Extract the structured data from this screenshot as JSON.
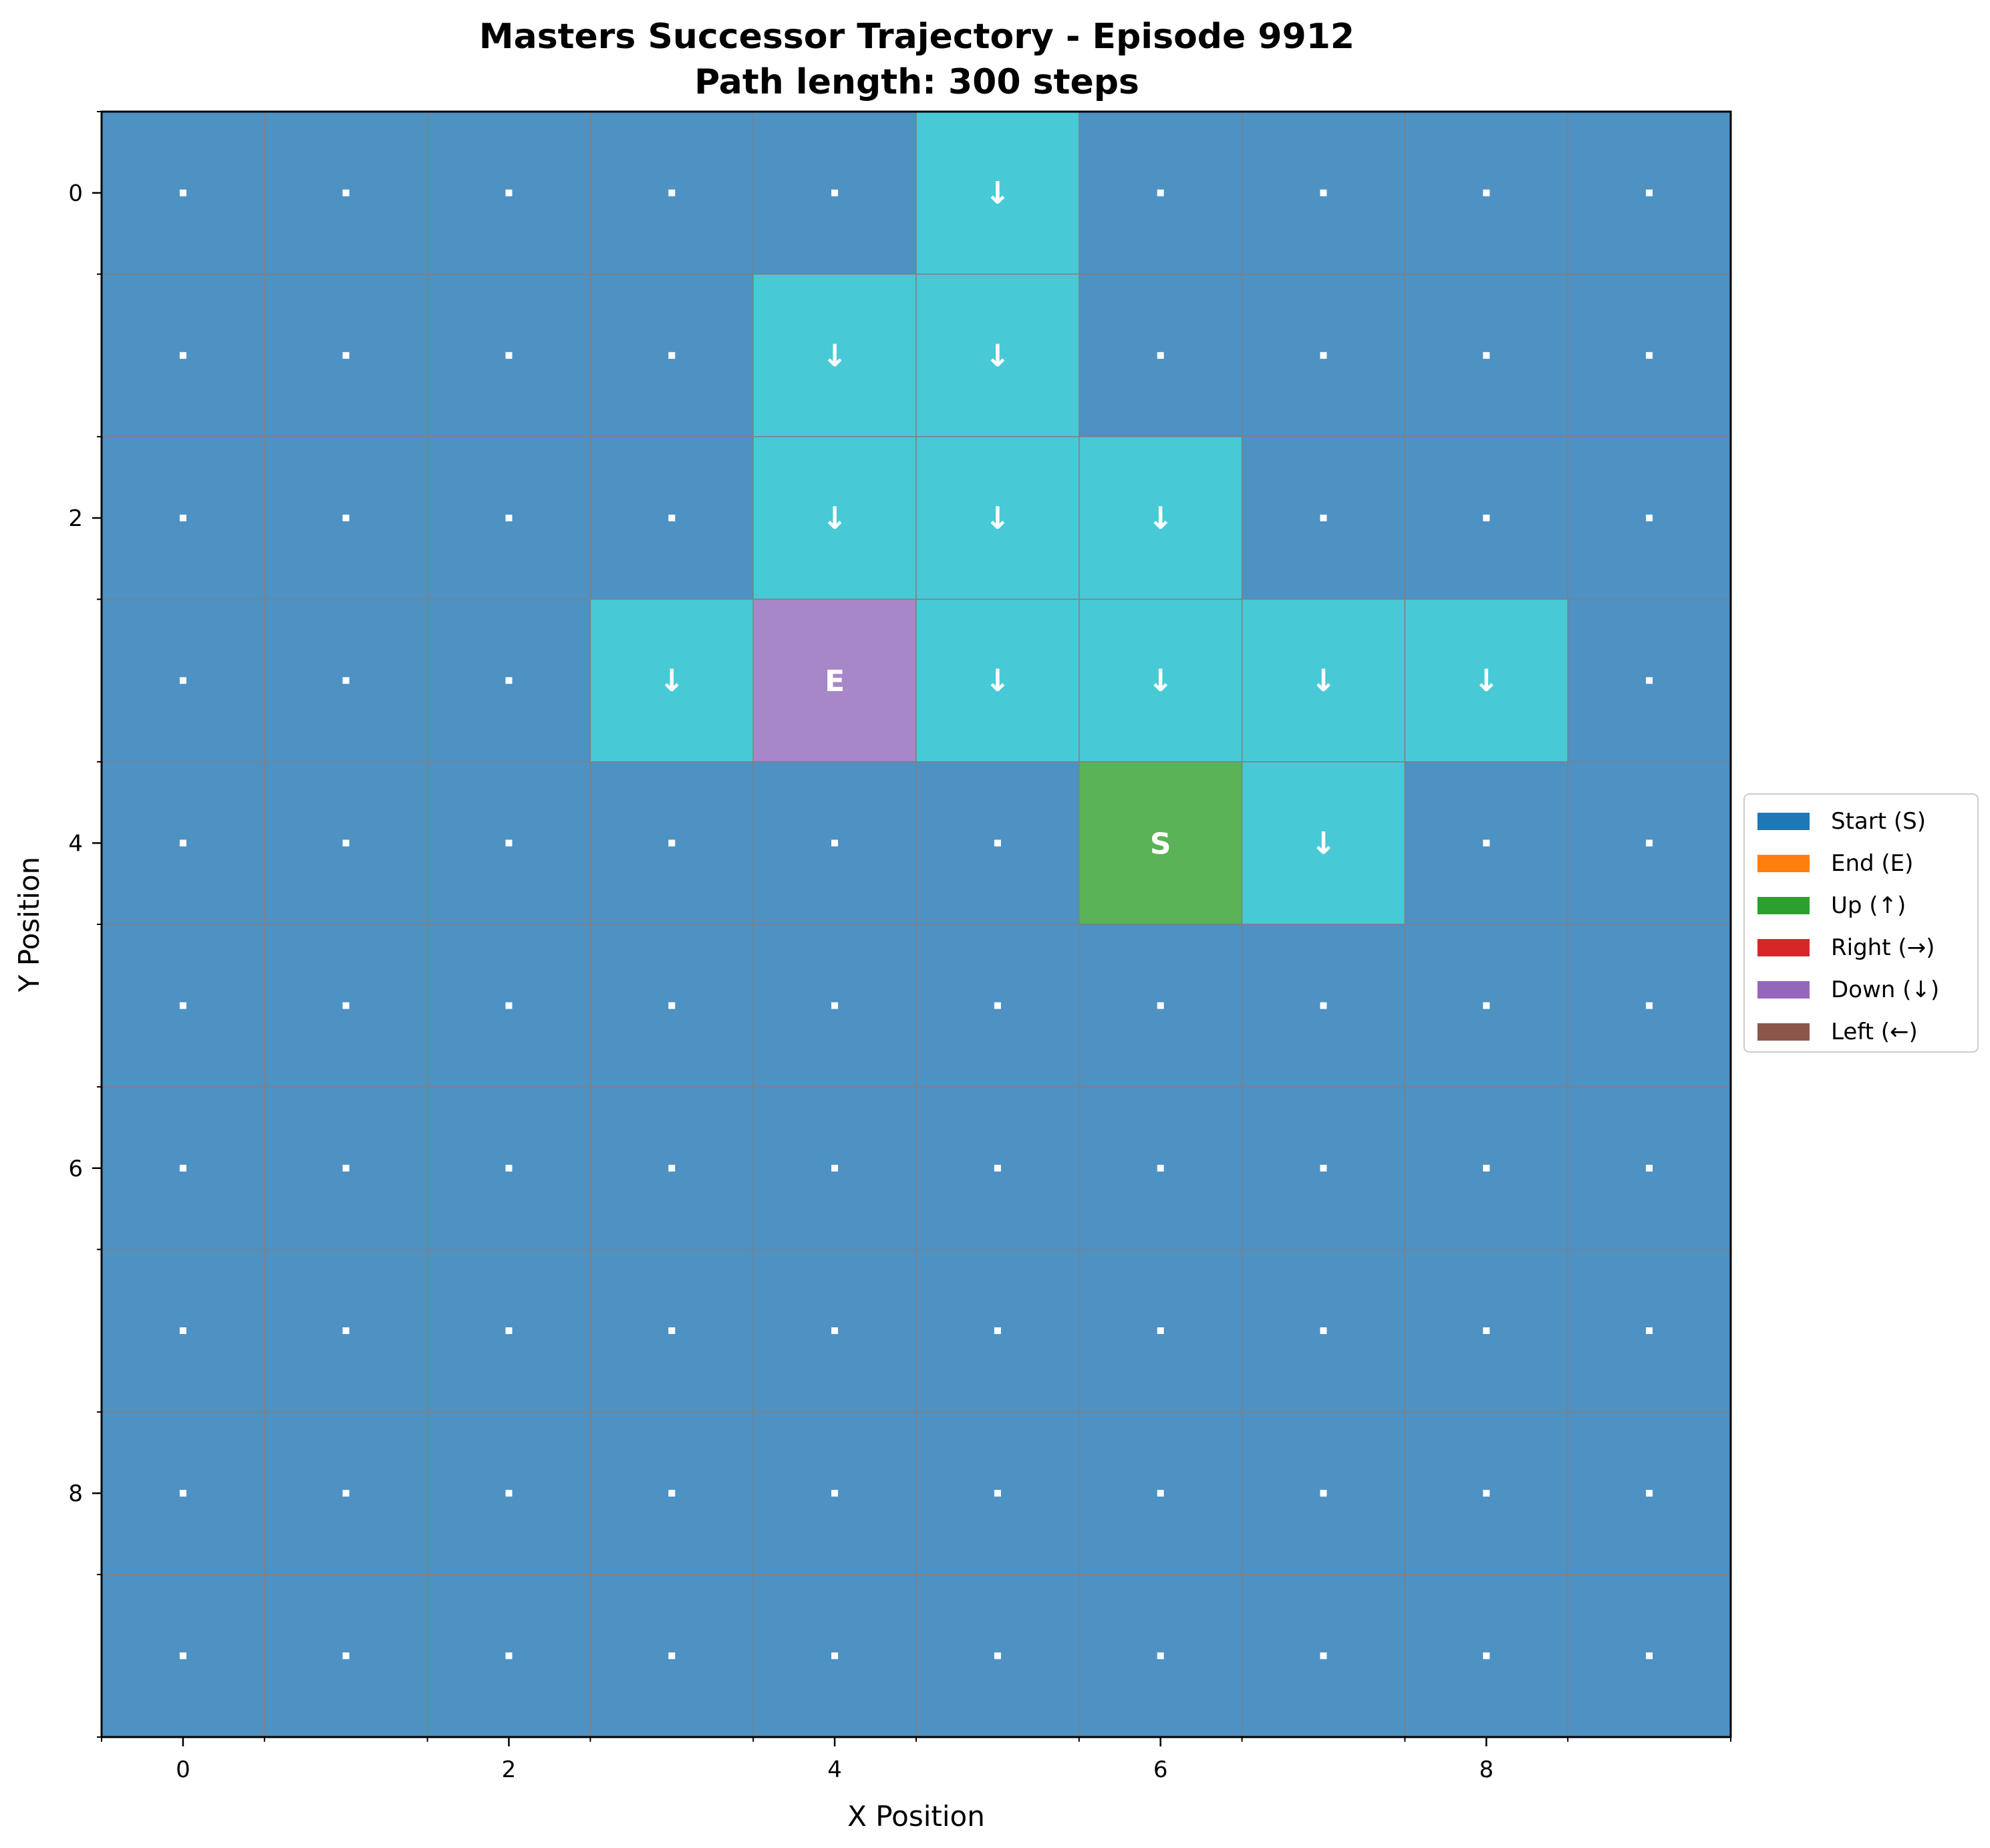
{
  "chart_data": {
    "type": "heatmap",
    "title_line1": "Masters Successor Trajectory - Episode 9912",
    "title_line2": "Path length: 300 steps",
    "xlabel": "X Position",
    "ylabel": "Y Position",
    "xlim": [
      -0.5,
      9.5
    ],
    "ylim": [
      9.5,
      -0.5
    ],
    "x_ticks": [
      0,
      2,
      4,
      6,
      8
    ],
    "y_ticks": [
      0,
      2,
      4,
      6,
      8
    ],
    "grid": true,
    "legend_position": "right-center",
    "legend": [
      {
        "label": "Start (S)",
        "color": "#1f77b4"
      },
      {
        "label": "End (E)",
        "color": "#ff7f0e"
      },
      {
        "label": "Up (↑)",
        "color": "#2ca02c"
      },
      {
        "label": "Right (→)",
        "color": "#d62728"
      },
      {
        "label": "Down (↓)",
        "color": "#9467bd"
      },
      {
        "label": "Left (←)",
        "color": "#8c564b"
      }
    ],
    "cell_colors": {
      "empty": "#4e91c3",
      "path": "#47cad6",
      "start": "#5ab356",
      "end": "#a887c8"
    },
    "grid_line_color": "#808080",
    "empty_mark": "·",
    "rows": [
      [
        "",
        "",
        "",
        "",
        "",
        "↓",
        "",
        "",
        "",
        ""
      ],
      [
        "",
        "",
        "",
        "",
        "↓",
        "↓",
        "",
        "",
        "",
        ""
      ],
      [
        "",
        "",
        "",
        "",
        "↓",
        "↓",
        "↓",
        "",
        "",
        ""
      ],
      [
        "",
        "",
        "",
        "↓",
        "E",
        "↓",
        "↓",
        "↓",
        "↓",
        ""
      ],
      [
        "",
        "",
        "",
        "",
        "",
        "",
        "S",
        "↓",
        "",
        ""
      ],
      [
        "",
        "",
        "",
        "",
        "",
        "",
        "",
        "",
        "",
        ""
      ],
      [
        "",
        "",
        "",
        "",
        "",
        "",
        "",
        "",
        "",
        ""
      ],
      [
        "",
        "",
        "",
        "",
        "",
        "",
        "",
        "",
        "",
        ""
      ],
      [
        "",
        "",
        "",
        "",
        "",
        "",
        "",
        "",
        "",
        ""
      ],
      [
        "",
        "",
        "",
        "",
        "",
        "",
        "",
        "",
        "",
        ""
      ]
    ]
  }
}
